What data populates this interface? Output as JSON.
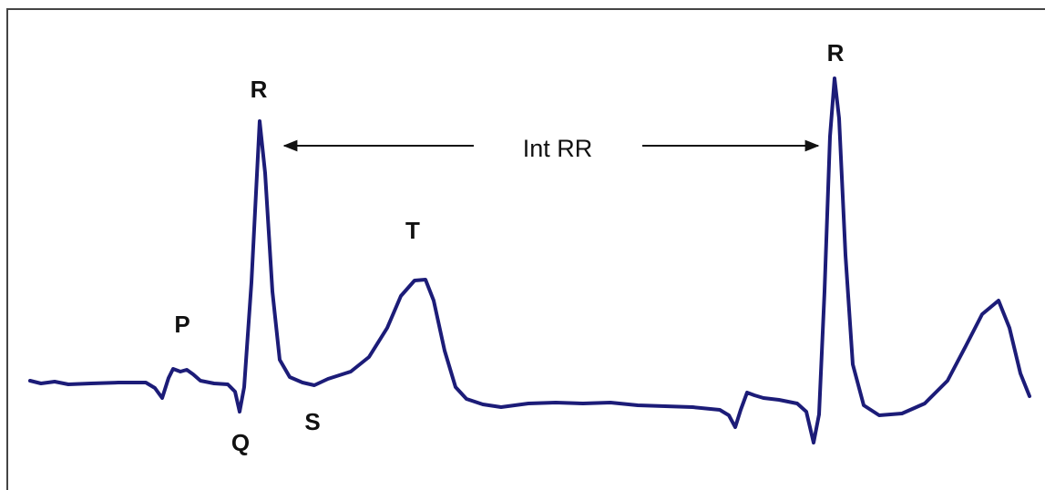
{
  "labels": {
    "p": "P",
    "q": "Q",
    "r1": "R",
    "s": "S",
    "t": "T",
    "r2": "R"
  },
  "interval": "Int RR"
}
